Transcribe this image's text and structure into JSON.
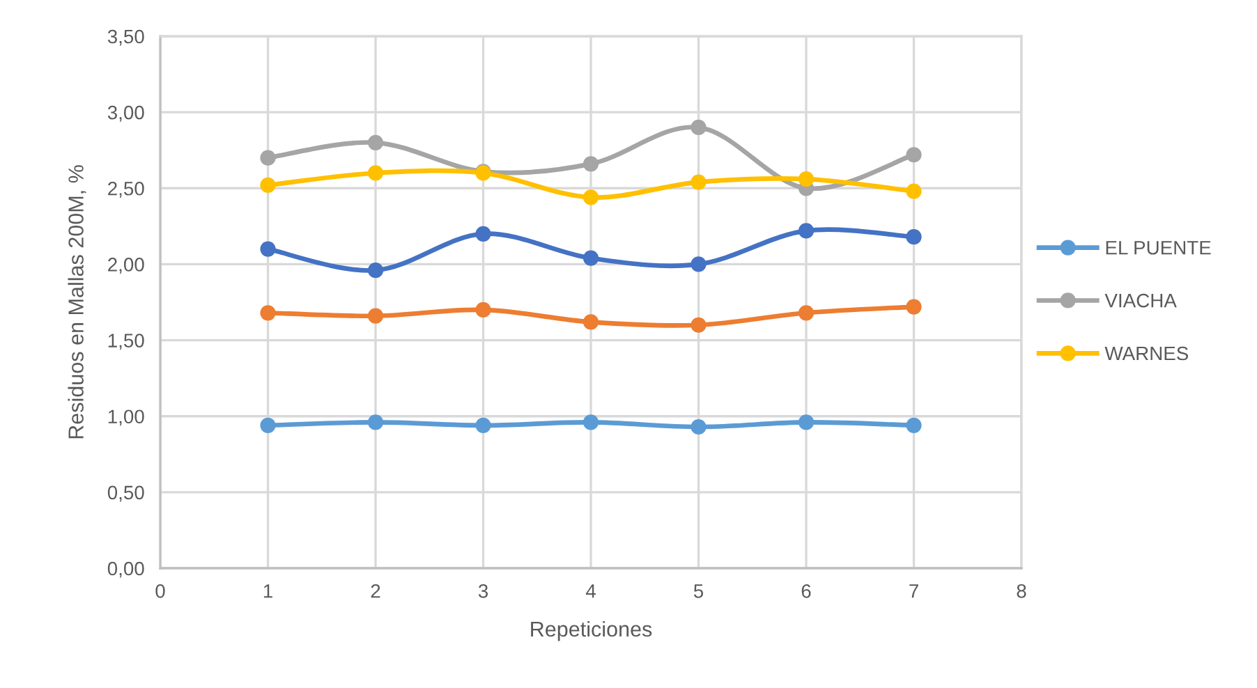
{
  "chart_data": {
    "type": "line",
    "xlabel": "Repeticiones",
    "ylabel": "Residuos en Mallas 200M, %",
    "x": [
      1,
      2,
      3,
      4,
      5,
      6,
      7
    ],
    "series": [
      {
        "name": "EL PUENTE",
        "color": "#5b9bd5",
        "values": [
          0.94,
          0.96,
          0.94,
          0.96,
          0.93,
          0.96,
          0.94
        ]
      },
      {
        "color": "#ed7d31",
        "values": [
          1.68,
          1.66,
          1.7,
          1.62,
          1.6,
          1.68,
          1.72
        ]
      },
      {
        "name": "VIACHA",
        "color": "#a5a5a5",
        "values": [
          2.7,
          2.8,
          2.61,
          2.66,
          2.9,
          2.5,
          2.72
        ]
      },
      {
        "name": "WARNES",
        "color": "#ffc000",
        "values": [
          2.52,
          2.6,
          2.6,
          2.44,
          2.54,
          2.56,
          2.48
        ]
      },
      {
        "color": "#4472c4",
        "values": [
          2.1,
          1.96,
          2.2,
          2.04,
          2.0,
          2.22,
          2.18
        ]
      }
    ],
    "xlim": [
      0,
      8
    ],
    "xticks": [
      0,
      1,
      2,
      3,
      4,
      5,
      6,
      7,
      8
    ],
    "ylim": [
      0,
      3.5
    ],
    "yticks": [
      {
        "value": 0,
        "label": "0,00"
      },
      {
        "value": 0.5,
        "label": "0,50"
      },
      {
        "value": 1,
        "label": "1,00"
      },
      {
        "value": 1.5,
        "label": "1,50"
      },
      {
        "value": 2,
        "label": "2,00"
      },
      {
        "value": 2.5,
        "label": "2,50"
      },
      {
        "value": 3,
        "label": "3,00"
      },
      {
        "value": 3.5,
        "label": "3,50"
      }
    ],
    "grid": true,
    "legend": "right",
    "marker": "circle",
    "line_style": "solid"
  }
}
